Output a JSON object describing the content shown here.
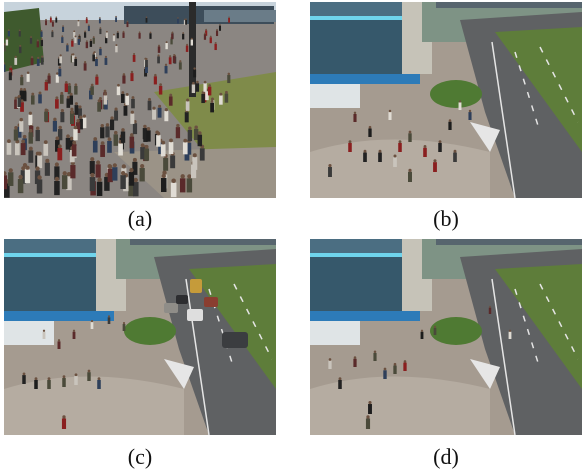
{
  "figure": {
    "panels": [
      {
        "id": "a",
        "caption": "(a)",
        "scene": "dense-crowd-plaza"
      },
      {
        "id": "b",
        "caption": "(b)",
        "scene": "street-crossing-sparse"
      },
      {
        "id": "c",
        "caption": "(c)",
        "scene": "street-crossing-traffic"
      },
      {
        "id": "d",
        "caption": "(d)",
        "scene": "street-crossing-few-pedestrians"
      }
    ],
    "signs": {
      "shop_sign": ""
    }
  },
  "colors": {
    "sky": "#b9c6cf",
    "pavement": "#a39a90",
    "road": "#5d5f61",
    "grass": "#5d7b38",
    "building_glass": "#31556a",
    "accent_blue": "#1f7fc0"
  }
}
